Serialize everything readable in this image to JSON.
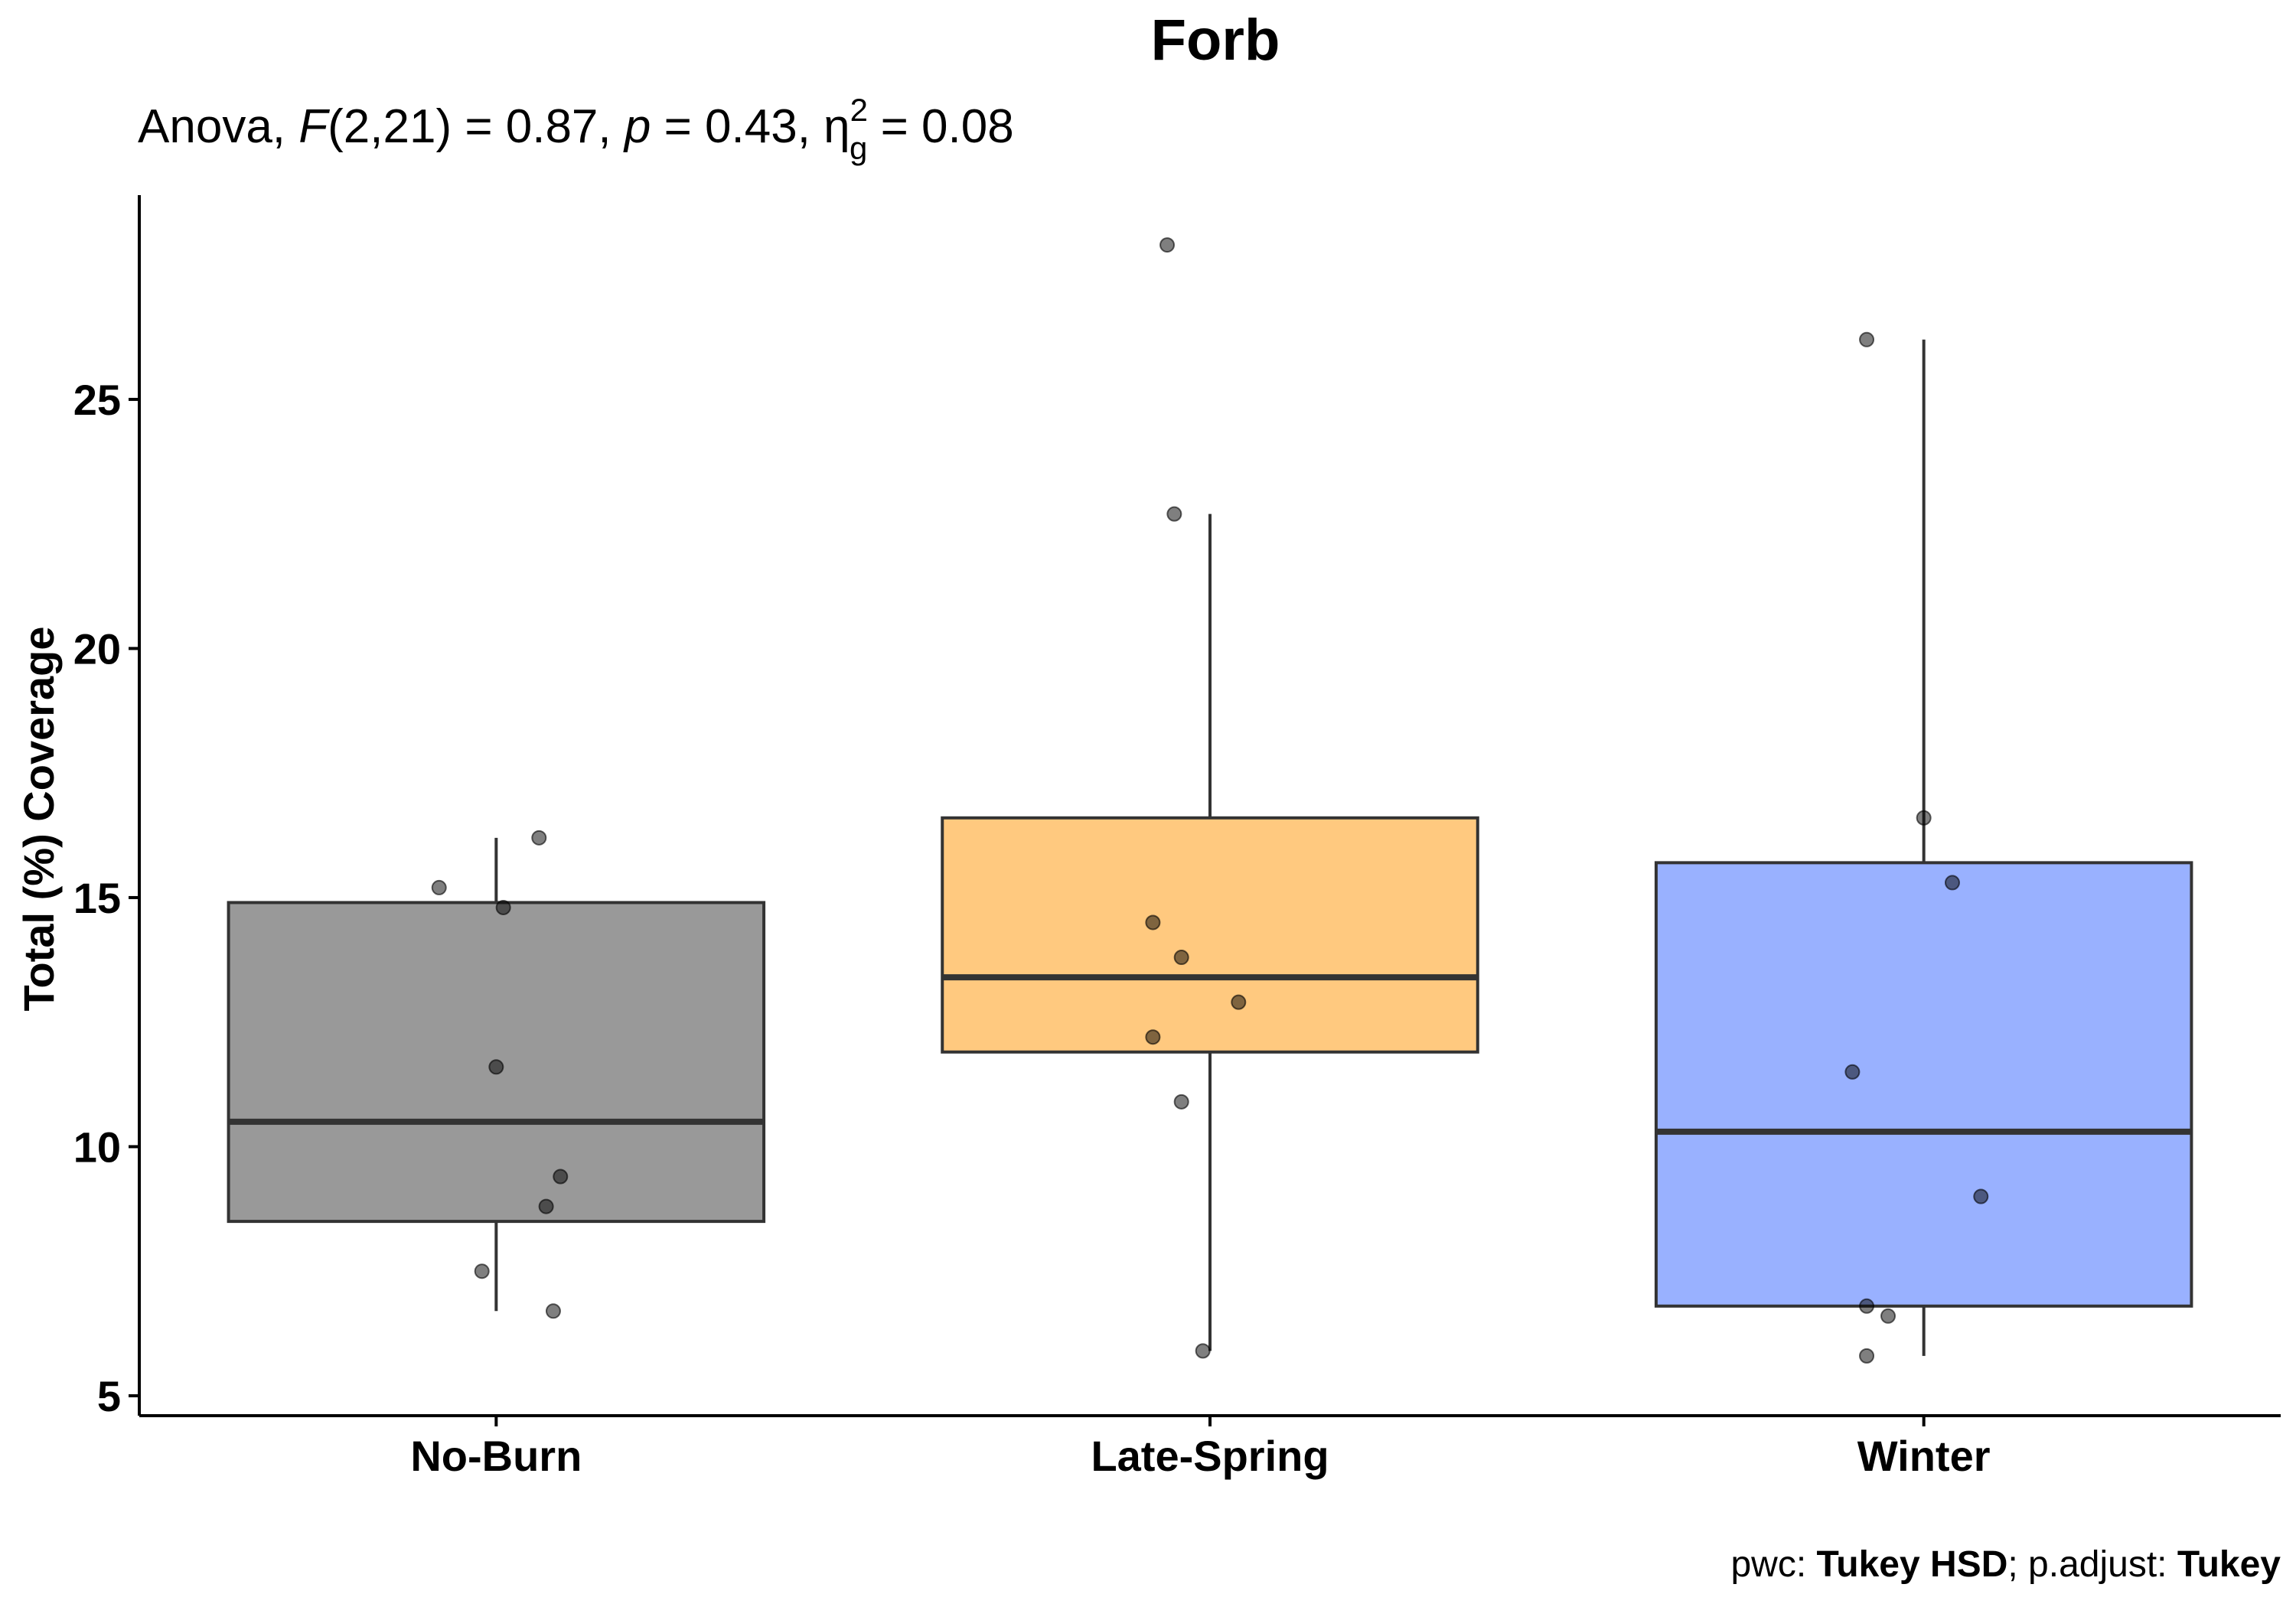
{
  "chart_data": {
    "type": "boxplot",
    "title": "Forb",
    "subtitle": {
      "prefix": "Anova, ",
      "f_symbol": "F",
      "f_args": "(2,21) = 0.87, ",
      "p_symbol": "p",
      "p_value": " = 0.43, ",
      "eta_symbol": "η",
      "eta_sub": "g",
      "eta_sup": "2",
      "eta_value": " = 0.08"
    },
    "ylabel": "Total (%) Coverage",
    "xlabel": "",
    "ylim": [
      4.6,
      29.1
    ],
    "yticks": [
      5,
      10,
      15,
      20,
      25
    ],
    "categories": [
      "No-Burn",
      "Late-Spring",
      "Winter"
    ],
    "groups": [
      {
        "name": "No-Burn",
        "color": "#999999",
        "q1": 8.5,
        "median": 10.5,
        "q3": 14.9,
        "whisker_low": 6.7,
        "whisker_high": 16.2,
        "points": [
          {
            "y": 16.2,
            "jitter": 0.06
          },
          {
            "y": 15.2,
            "jitter": -0.08
          },
          {
            "y": 14.8,
            "jitter": 0.01
          },
          {
            "y": 11.6,
            "jitter": 0.0
          },
          {
            "y": 9.4,
            "jitter": 0.09
          },
          {
            "y": 8.8,
            "jitter": 0.07
          },
          {
            "y": 7.5,
            "jitter": -0.02
          },
          {
            "y": 6.7,
            "jitter": 0.08
          }
        ]
      },
      {
        "name": "Late-Spring",
        "color": "#FFC97F",
        "q1": 11.9,
        "median": 13.4,
        "q3": 16.6,
        "whisker_low": 5.9,
        "whisker_high": 22.7,
        "points": [
          {
            "y": 28.1,
            "jitter": -0.06
          },
          {
            "y": 22.7,
            "jitter": -0.05
          },
          {
            "y": 14.5,
            "jitter": -0.08
          },
          {
            "y": 13.8,
            "jitter": -0.04
          },
          {
            "y": 12.9,
            "jitter": 0.04
          },
          {
            "y": 12.2,
            "jitter": -0.08
          },
          {
            "y": 10.9,
            "jitter": -0.04
          },
          {
            "y": 5.9,
            "jitter": -0.01
          }
        ]
      },
      {
        "name": "Winter",
        "color": "#99B1FF",
        "q1": 6.8,
        "median": 10.3,
        "q3": 15.7,
        "whisker_low": 5.8,
        "whisker_high": 26.2,
        "points": [
          {
            "y": 26.2,
            "jitter": -0.08
          },
          {
            "y": 16.6,
            "jitter": 0.0
          },
          {
            "y": 15.3,
            "jitter": 0.04
          },
          {
            "y": 11.5,
            "jitter": -0.1
          },
          {
            "y": 9.0,
            "jitter": 0.08
          },
          {
            "y": 6.8,
            "jitter": -0.08
          },
          {
            "y": 6.6,
            "jitter": -0.05
          },
          {
            "y": 5.8,
            "jitter": -0.08
          }
        ]
      }
    ],
    "caption": {
      "pwc_label": "pwc: ",
      "pwc_value": "Tukey HSD",
      "sep": "; p.adjust: ",
      "adjust_value": "Tukey"
    }
  }
}
